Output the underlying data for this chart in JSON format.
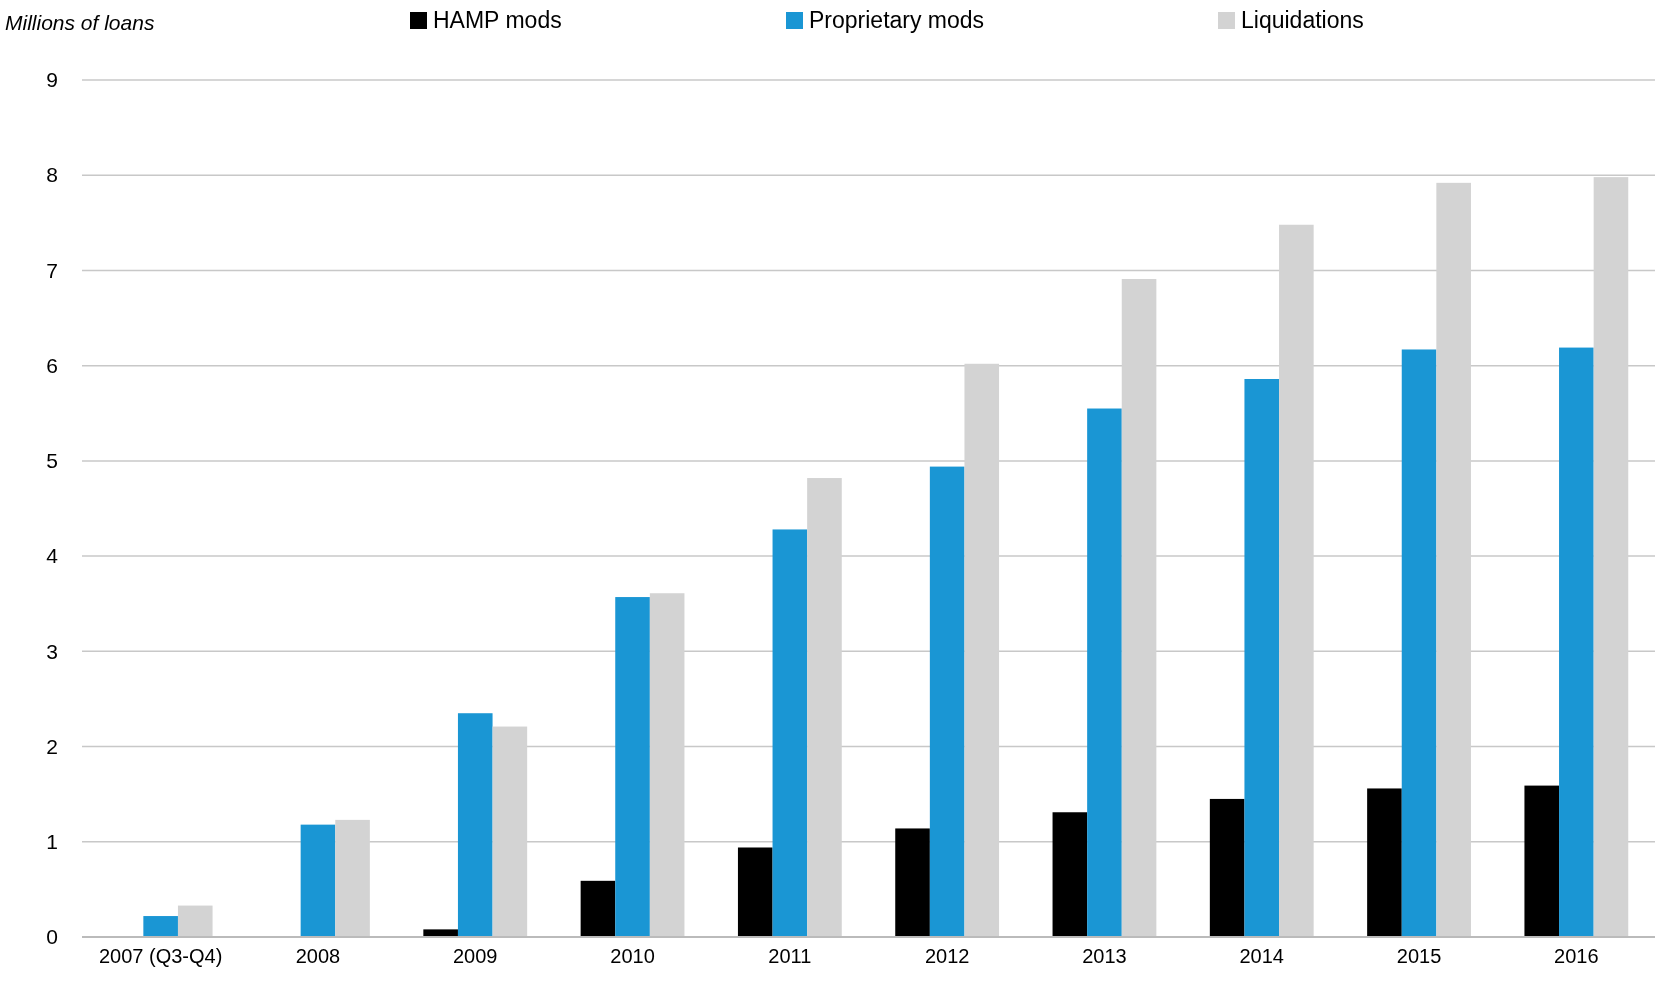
{
  "chart_data": {
    "type": "bar",
    "ylabel": "Millions of loans",
    "categories": [
      "2007 (Q3-Q4)",
      "2008",
      "2009",
      "2010",
      "2011",
      "2012",
      "2013",
      "2014",
      "2015",
      "2016"
    ],
    "series": [
      {
        "name": "HAMP mods",
        "color": "#000000",
        "values": [
          0,
          0,
          0.08,
          0.59,
          0.94,
          1.14,
          1.31,
          1.45,
          1.56,
          1.59
        ]
      },
      {
        "name": "Proprietary mods",
        "color": "#1a96d4",
        "values": [
          0.22,
          1.18,
          2.35,
          3.57,
          4.28,
          4.94,
          5.55,
          5.86,
          6.17,
          6.19
        ]
      },
      {
        "name": "Liquidations",
        "color": "#d3d3d3",
        "values": [
          0.33,
          1.23,
          2.21,
          3.61,
          4.82,
          6.02,
          6.91,
          7.48,
          7.92,
          7.98
        ]
      }
    ],
    "ylim": [
      0,
      9
    ],
    "yticks": [
      0,
      1,
      2,
      3,
      4,
      5,
      6,
      7,
      8,
      9
    ],
    "grid": "y",
    "legend": "top"
  }
}
